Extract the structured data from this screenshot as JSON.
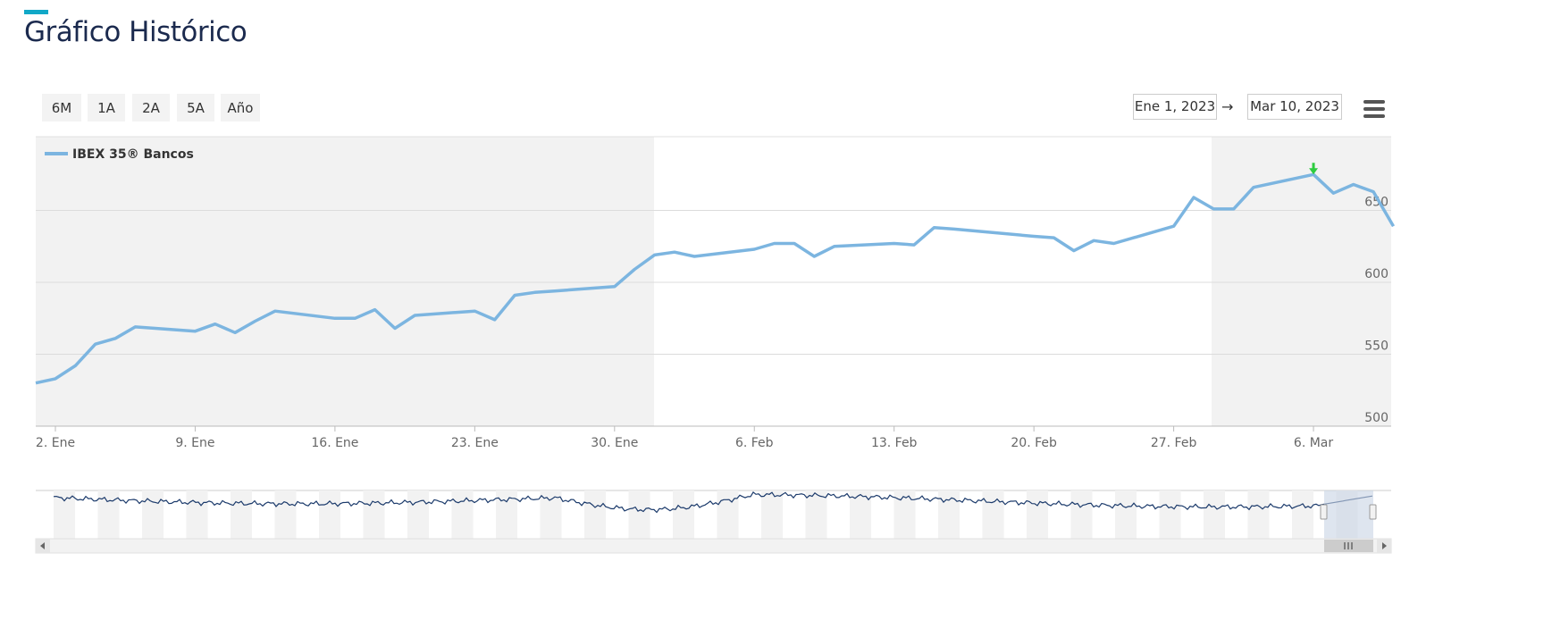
{
  "header": {
    "title": "Gráfico Histórico"
  },
  "toolbar": {
    "range_buttons": [
      "6M",
      "1A",
      "2A",
      "5A",
      "Año"
    ],
    "date_from": "Ene 1, 2023",
    "date_to": "Mar 10, 2023",
    "arrow": "→",
    "menu_icon": "hamburger-menu-icon"
  },
  "colors": {
    "line": "#7cb5e0",
    "accent": "#11a8c7",
    "marker": "#2ecc40",
    "navigator_line": "#1b3a6b"
  },
  "chart_data": {
    "type": "line",
    "series": [
      {
        "name": "IBEX 35® Bancos",
        "x": [
          "2023-01-01",
          "2023-01-02",
          "2023-01-03",
          "2023-01-04",
          "2023-01-05",
          "2023-01-06",
          "2023-01-09",
          "2023-01-10",
          "2023-01-11",
          "2023-01-12",
          "2023-01-13",
          "2023-01-16",
          "2023-01-17",
          "2023-01-18",
          "2023-01-19",
          "2023-01-20",
          "2023-01-23",
          "2023-01-24",
          "2023-01-25",
          "2023-01-26",
          "2023-01-27",
          "2023-01-30",
          "2023-01-31",
          "2023-02-01",
          "2023-02-02",
          "2023-02-03",
          "2023-02-06",
          "2023-02-07",
          "2023-02-08",
          "2023-02-09",
          "2023-02-10",
          "2023-02-13",
          "2023-02-14",
          "2023-02-15",
          "2023-02-16",
          "2023-02-20",
          "2023-02-21",
          "2023-02-22",
          "2023-02-23",
          "2023-02-24",
          "2023-02-27",
          "2023-02-28",
          "2023-03-01",
          "2023-03-02",
          "2023-03-03",
          "2023-03-06",
          "2023-03-07",
          "2023-03-08",
          "2023-03-09",
          "2023-03-10"
        ],
        "values": [
          530,
          533,
          542,
          557,
          561,
          569,
          566,
          571,
          565,
          573,
          580,
          575,
          575,
          581,
          568,
          577,
          580,
          574,
          591,
          593,
          594,
          597,
          609,
          619,
          621,
          618,
          623,
          627,
          627,
          618,
          625,
          627,
          626,
          638,
          637,
          632,
          631,
          622,
          629,
          627,
          639,
          659,
          651,
          651,
          666,
          675,
          662,
          668,
          663,
          639
        ]
      }
    ],
    "x_tick_labels": [
      "2. Ene",
      "9. Ene",
      "16. Ene",
      "23. Ene",
      "30. Ene",
      "6. Feb",
      "13. Feb",
      "20. Feb",
      "27. Feb",
      "6. Mar"
    ],
    "y_tick_labels": [
      "500",
      "550",
      "600",
      "650"
    ],
    "ylim": [
      500,
      700
    ],
    "grid": true,
    "legend": {
      "position": "top-left"
    },
    "markers": [
      {
        "date": "2023-03-06",
        "symbol": "green-arrow-icon"
      }
    ]
  },
  "navigator": {
    "scroll_left_icon": "scroll-left-arrow-icon",
    "scroll_right_icon": "scroll-right-arrow-icon",
    "thumb_icon": "scroll-thumb-grip-icon"
  }
}
